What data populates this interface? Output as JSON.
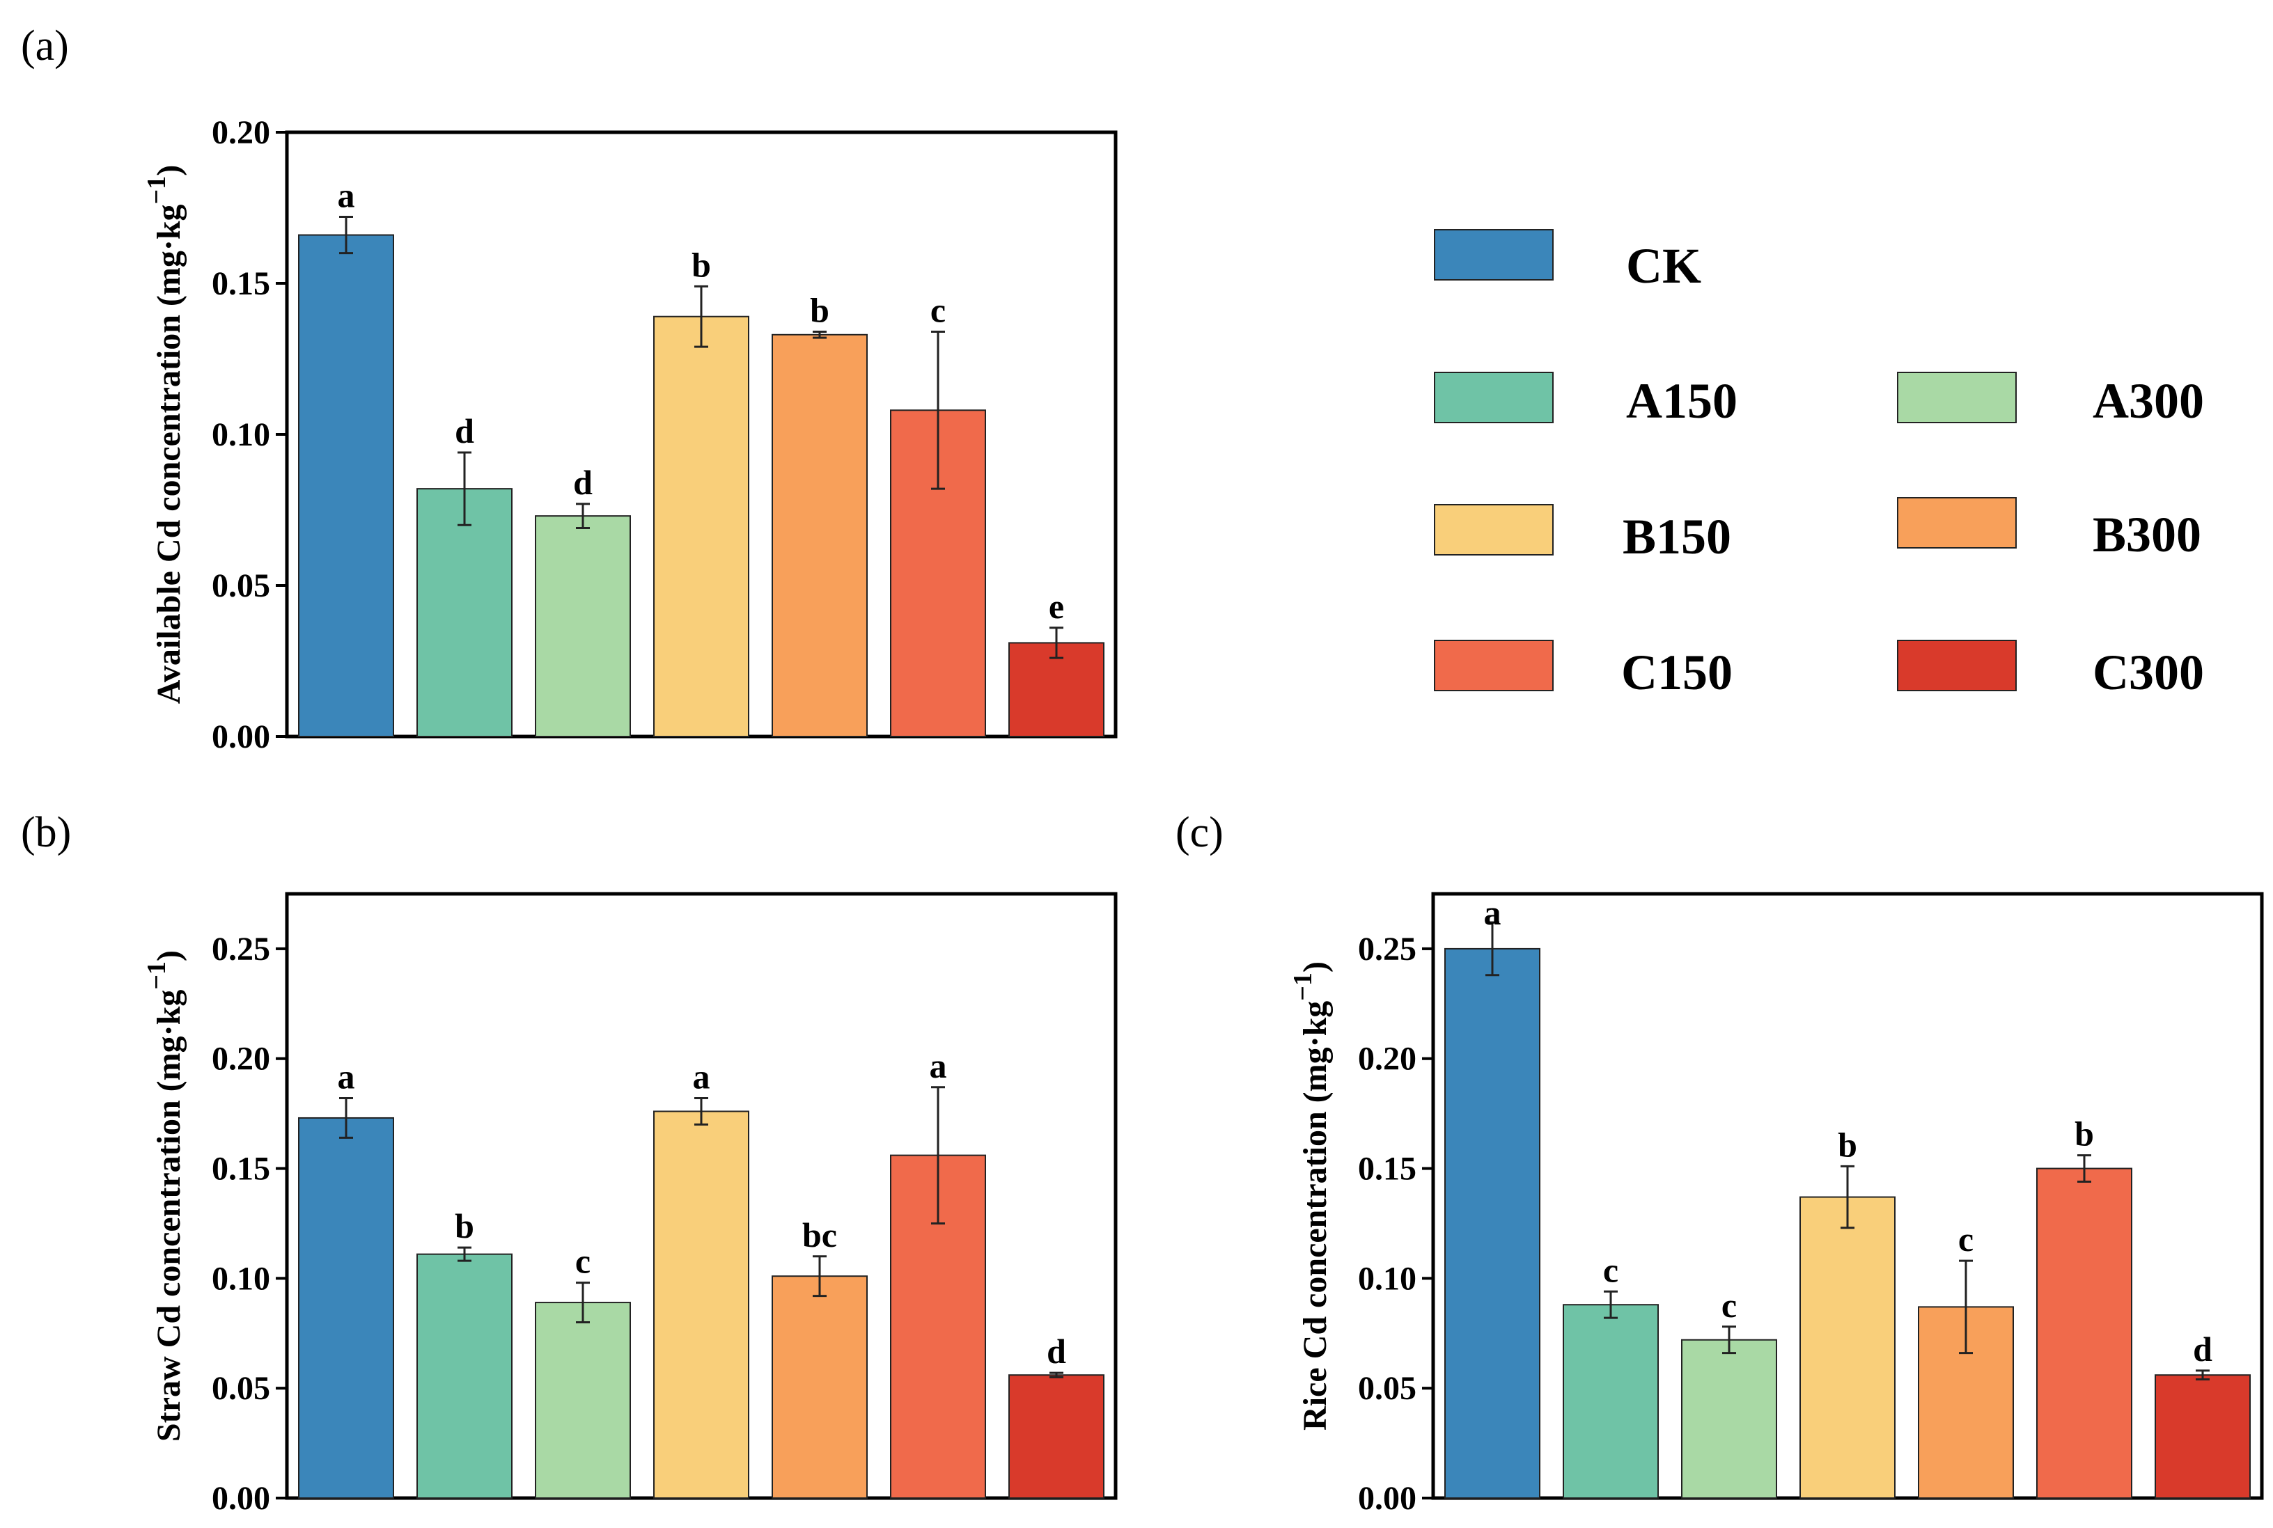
{
  "colors": {
    "CK": "#3b86ba",
    "A150": "#6fc3a6",
    "A300": "#a9d9a5",
    "B150": "#f9cf7a",
    "B300": "#f8a05a",
    "C150": "#f06a4b",
    "C300": "#d93a2b"
  },
  "legend": {
    "items": [
      {
        "key": "CK",
        "label": "CK"
      },
      {
        "key": "A150",
        "label": "A150"
      },
      {
        "key": "A300",
        "label": "A300"
      },
      {
        "key": "B150",
        "label": "B150"
      },
      {
        "key": "B300",
        "label": "B300"
      },
      {
        "key": "C150",
        "label": "C150"
      },
      {
        "key": "C300",
        "label": "C300"
      }
    ]
  },
  "chart_data": [
    {
      "panel": "(a)",
      "type": "bar",
      "categories": [
        "CK",
        "A150",
        "A300",
        "B150",
        "B300",
        "C150",
        "C300"
      ],
      "values": [
        0.166,
        0.082,
        0.073,
        0.139,
        0.133,
        0.108,
        0.031
      ],
      "errors": [
        0.006,
        0.012,
        0.004,
        0.01,
        0.001,
        0.026,
        0.005
      ],
      "significance": [
        "a",
        "d",
        "d",
        "b",
        "b",
        "c",
        "e"
      ],
      "ylabel_main": "Available Cd concentration (mg·kg",
      "ylabel_sup": "−1",
      "ylabel_close": ")",
      "ylim": [
        0,
        0.2
      ],
      "yticks": [
        0.0,
        0.05,
        0.1,
        0.15,
        0.2
      ],
      "ytick_labels": [
        "0.00",
        "0.05",
        "0.10",
        "0.15",
        "0.20"
      ]
    },
    {
      "panel": "(b)",
      "type": "bar",
      "categories": [
        "CK",
        "A150",
        "A300",
        "B150",
        "B300",
        "C150",
        "C300"
      ],
      "values": [
        0.173,
        0.111,
        0.089,
        0.176,
        0.101,
        0.156,
        0.056
      ],
      "errors": [
        0.009,
        0.003,
        0.009,
        0.006,
        0.009,
        0.031,
        0.001
      ],
      "significance": [
        "a",
        "b",
        "c",
        "a",
        "bc",
        "a",
        "d"
      ],
      "ylabel_main": "Straw Cd concentration (mg·kg",
      "ylabel_sup": "−1",
      "ylabel_close": ")",
      "ylim": [
        0,
        0.275
      ],
      "yticks": [
        0.0,
        0.05,
        0.1,
        0.15,
        0.2,
        0.25
      ],
      "ytick_labels": [
        "0.00",
        "0.05",
        "0.10",
        "0.15",
        "0.20",
        "0.25"
      ]
    },
    {
      "panel": "(c)",
      "type": "bar",
      "categories": [
        "CK",
        "A150",
        "A300",
        "B150",
        "B300",
        "C150",
        "C300"
      ],
      "values": [
        0.25,
        0.088,
        0.072,
        0.137,
        0.087,
        0.15,
        0.056
      ],
      "errors": [
        0.012,
        0.006,
        0.006,
        0.014,
        0.021,
        0.006,
        0.002
      ],
      "significance": [
        "a",
        "c",
        "c",
        "b",
        "c",
        "b",
        "d"
      ],
      "ylabel_main": "Rice Cd concentration (mg·kg",
      "ylabel_sup": "−1",
      "ylabel_close": ")",
      "ylim": [
        0,
        0.275
      ],
      "yticks": [
        0.0,
        0.05,
        0.1,
        0.15,
        0.2,
        0.25
      ],
      "ytick_labels": [
        "0.00",
        "0.05",
        "0.10",
        "0.15",
        "0.20",
        "0.25"
      ]
    }
  ]
}
